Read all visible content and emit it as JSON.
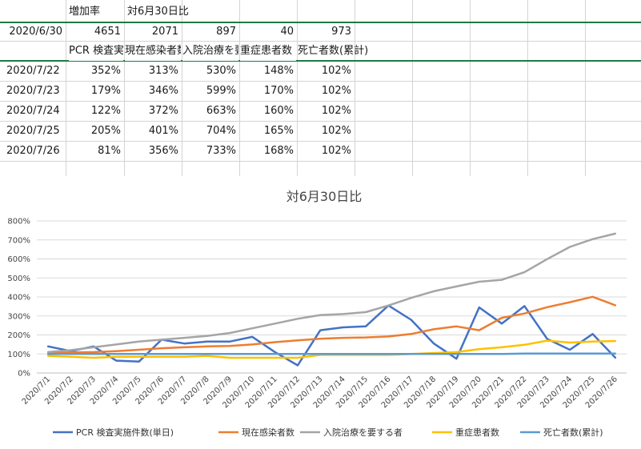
{
  "sheet": {
    "row1": {
      "b": "増加率",
      "c": "対6月30日比"
    },
    "row2": {
      "a": "2020/6/30",
      "b": "4651",
      "c": "2071",
      "d": "897",
      "e": "40",
      "f": "973"
    },
    "row3": {
      "b": "PCR 検査実施件数(単日)",
      "c": "現在感染者数",
      "d": "入院治療を要する者",
      "e": "重症患者数",
      "f": "死亡者数(累計)"
    },
    "rows": [
      {
        "date": "2020/7/22",
        "pcr": "352%",
        "infected": "313%",
        "hosp": "530%",
        "severe": "148%",
        "death": "102%"
      },
      {
        "date": "2020/7/23",
        "pcr": "179%",
        "infected": "346%",
        "hosp": "599%",
        "severe": "170%",
        "death": "102%"
      },
      {
        "date": "2020/7/24",
        "pcr": "122%",
        "infected": "372%",
        "hosp": "663%",
        "severe": "160%",
        "death": "102%"
      },
      {
        "date": "2020/7/25",
        "pcr": "205%",
        "infected": "401%",
        "hosp": "704%",
        "severe": "165%",
        "death": "102%"
      },
      {
        "date": "2020/7/26",
        "pcr": "81%",
        "infected": "356%",
        "hosp": "733%",
        "severe": "168%",
        "death": "102%"
      }
    ]
  },
  "chart_data": {
    "type": "line",
    "title": "対6月30日比",
    "xlabel": "",
    "ylabel": "",
    "ylim": [
      0,
      800
    ],
    "yticks": [
      "0%",
      "100%",
      "200%",
      "300%",
      "400%",
      "500%",
      "600%",
      "700%",
      "800%"
    ],
    "grid": true,
    "legend_position": "bottom",
    "categories": [
      "2020/7/1",
      "2020/7/2",
      "2020/7/3",
      "2020/7/4",
      "2020/7/5",
      "2020/7/6",
      "2020/7/7",
      "2020/7/8",
      "2020/7/9",
      "2020/7/10",
      "2020/7/11",
      "2020/7/12",
      "2020/7/13",
      "2020/7/14",
      "2020/7/15",
      "2020/7/16",
      "2020/7/17",
      "2020/7/18",
      "2020/7/19",
      "2020/7/20",
      "2020/7/21",
      "2020/7/22",
      "2020/7/23",
      "2020/7/24",
      "2020/7/25",
      "2020/7/26"
    ],
    "series": [
      {
        "name": "PCR 検査実施件数(単日)",
        "color": "#4472c4",
        "values": [
          140,
          115,
          140,
          65,
          60,
          175,
          155,
          165,
          165,
          190,
          110,
          40,
          225,
          240,
          245,
          355,
          280,
          155,
          75,
          345,
          260,
          352,
          179,
          122,
          205,
          81
        ]
      },
      {
        "name": "現在感染者数",
        "color": "#ed7d31",
        "values": [
          105,
          108,
          110,
          115,
          122,
          130,
          135,
          140,
          142,
          150,
          162,
          172,
          180,
          185,
          187,
          192,
          205,
          230,
          245,
          225,
          290,
          313,
          346,
          372,
          401,
          356
        ]
      },
      {
        "name": "入院治療を要する者",
        "color": "#a5a5a5",
        "values": [
          110,
          120,
          135,
          150,
          165,
          175,
          185,
          195,
          210,
          235,
          260,
          285,
          305,
          310,
          320,
          355,
          395,
          430,
          455,
          480,
          490,
          530,
          599,
          663,
          704,
          733
        ]
      },
      {
        "name": "重症患者数",
        "color": "#ffc000",
        "values": [
          90,
          85,
          80,
          85,
          85,
          85,
          85,
          90,
          80,
          80,
          80,
          80,
          95,
          95,
          95,
          95,
          100,
          105,
          110,
          125,
          135,
          148,
          170,
          160,
          165,
          168
        ]
      },
      {
        "name": "死亡者数(累計)",
        "color": "#5b9bd5",
        "values": [
          100,
          100,
          100,
          100,
          100,
          100,
          100,
          100,
          100,
          100,
          100,
          100,
          100,
          100,
          100,
          100,
          100,
          100,
          100,
          100,
          100,
          102,
          102,
          102,
          102,
          102
        ]
      }
    ]
  }
}
